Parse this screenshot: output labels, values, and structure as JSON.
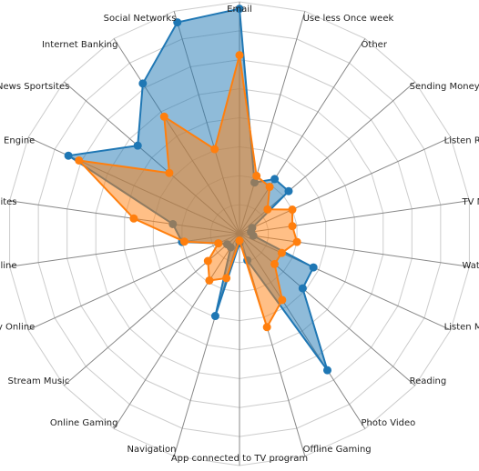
{
  "chart_data": {
    "type": "radar",
    "axes": [
      "Email",
      "Use less Once week",
      "Other",
      "Sending Money",
      "Listen Radio",
      "TV News",
      "Watch TV",
      "Listen Music",
      "Reading",
      "Photo Video",
      "Offline Gaming",
      "App connected to TV program",
      "Navigation",
      "Online Gaming",
      "Stream Music",
      "Buy Online",
      "Paying Online",
      "View Shopping sites",
      "Search Engine",
      "News Sportsites",
      "Internet Banking",
      "Social Networks"
    ],
    "series": [
      {
        "color": "#1f77b4",
        "fill": "#1f77b4",
        "values": [
          0.97,
          0.23,
          0.28,
          0.28,
          0.06,
          0.05,
          0.06,
          0.35,
          0.36,
          0.7,
          0.12,
          0.04,
          0.37,
          0.07,
          0.07,
          0.1,
          0.25,
          0.29,
          0.81,
          0.58,
          0.77,
          0.95
        ]
      },
      {
        "color": "#ff7f0e",
        "fill": "#ff7f0e",
        "values": [
          0.77,
          0.26,
          0.24,
          0.16,
          0.25,
          0.23,
          0.25,
          0.2,
          0.2,
          0.34,
          0.42,
          0.03,
          0.2,
          0.24,
          0.18,
          0.1,
          0.24,
          0.46,
          0.76,
          0.4,
          0.6,
          0.38
        ]
      }
    ],
    "max_value": 1,
    "grid_levels": 8
  }
}
